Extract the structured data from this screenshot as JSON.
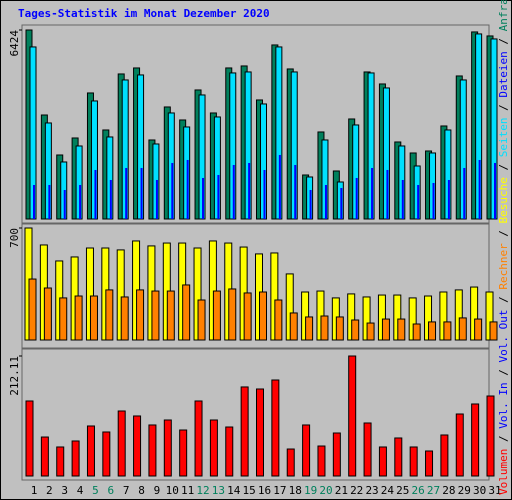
{
  "chart_data": [
    {
      "type": "bar",
      "title": "Tages-Statistik im Monat Dezember 2020",
      "ylim": [
        0,
        6424
      ],
      "yticks": [
        6424
      ],
      "series": [
        {
          "name": "Anfragen",
          "color": "#00805c",
          "values": [
            6424,
            3535,
            2176,
            2754,
            4284,
            3026,
            4930,
            5134,
            2686,
            3808,
            3366,
            4386,
            3604,
            5134,
            5202,
            4046,
            5916,
            5100,
            1496,
            2958,
            1632,
            3400,
            4998,
            4590,
            2618,
            2244,
            2312,
            3162,
            4862,
            6358,
            6222
          ]
        },
        {
          "name": "Dateien",
          "color": "#0000ff",
          "values": [
            1156,
            1156,
            986,
            1156,
            1666,
            1326,
            1734,
            1734,
            1326,
            1904,
            2006,
            1394,
            1496,
            1836,
            1904,
            1666,
            2176,
            1836,
            986,
            1156,
            1054,
            1394,
            1734,
            1666,
            1326,
            1156,
            1224,
            1326,
            1734,
            2006,
            1904
          ]
        },
        {
          "name": "Seiten",
          "color": "#00e0ff",
          "values": [
            5848,
            3264,
            1938,
            2482,
            4012,
            2788,
            4726,
            4896,
            2550,
            3604,
            3128,
            4216,
            3468,
            4964,
            4998,
            3910,
            5848,
            4998,
            1428,
            2686,
            1258,
            3196,
            4964,
            4454,
            2482,
            1802,
            2244,
            3026,
            4726,
            6290,
            6120
          ]
        }
      ]
    },
    {
      "type": "bar",
      "ylim": [
        0,
        700
      ],
      "yticks": [
        700
      ],
      "series": [
        {
          "name": "Besuche",
          "color": "#ffff00",
          "values": [
            700,
            594,
            494,
            519,
            575,
            575,
            563,
            619,
            588,
            606,
            606,
            575,
            619,
            606,
            581,
            538,
            544,
            413,
            300,
            306,
            263,
            288,
            269,
            281,
            281,
            263,
            275,
            300,
            313,
            331,
            300
          ]
        },
        {
          "name": "Rechner",
          "color": "#ff8000",
          "values": [
            381,
            325,
            263,
            275,
            275,
            313,
            269,
            313,
            306,
            306,
            344,
            250,
            306,
            319,
            294,
            300,
            250,
            169,
            144,
            150,
            144,
            125,
            106,
            131,
            131,
            100,
            113,
            113,
            138,
            131,
            113
          ]
        }
      ]
    },
    {
      "type": "bar",
      "ylim": [
        0,
        212.11
      ],
      "yticks": [
        212.11
      ],
      "categories": [
        "1",
        "2",
        "3",
        "4",
        "5",
        "6",
        "7",
        "8",
        "9",
        "10",
        "11",
        "12",
        "13",
        "14",
        "15",
        "16",
        "17",
        "18",
        "19",
        "20",
        "21",
        "22",
        "23",
        "24",
        "25",
        "26",
        "27",
        "28",
        "29",
        "30",
        "31"
      ],
      "category_colors": [
        "#000000",
        "#000000",
        "#000000",
        "#000000",
        "#00805c",
        "#00805c",
        "#000000",
        "#000000",
        "#000000",
        "#000000",
        "#000000",
        "#00805c",
        "#00805c",
        "#000000",
        "#000000",
        "#000000",
        "#000000",
        "#000000",
        "#00805c",
        "#00805c",
        "#000000",
        "#000000",
        "#000000",
        "#000000",
        "#000000",
        "#00805c",
        "#00805c",
        "#000000",
        "#000000",
        "#000000",
        "#000000"
      ],
      "legend_separator": " / ",
      "series": [
        {
          "name": "Volumen",
          "color": "#ff0000",
          "values": [
            132.6,
            68.9,
            51.3,
            61.9,
            88.4,
            77.8,
            114.9,
            106.1,
            90.2,
            99.0,
            81.3,
            132.6,
            99.0,
            86.6,
            157.4,
            153.8,
            169.7,
            47.7,
            90.2,
            53.0,
            76.0,
            212.11,
            93.7,
            51.3,
            67.2,
            51.3,
            44.2,
            72.5,
            109.6,
            127.3,
            141.4
          ]
        },
        {
          "name": "Vol. In",
          "color": "#0000ff"
        },
        {
          "name": "Vol. Out",
          "color": "#0000ff"
        }
      ]
    }
  ]
}
